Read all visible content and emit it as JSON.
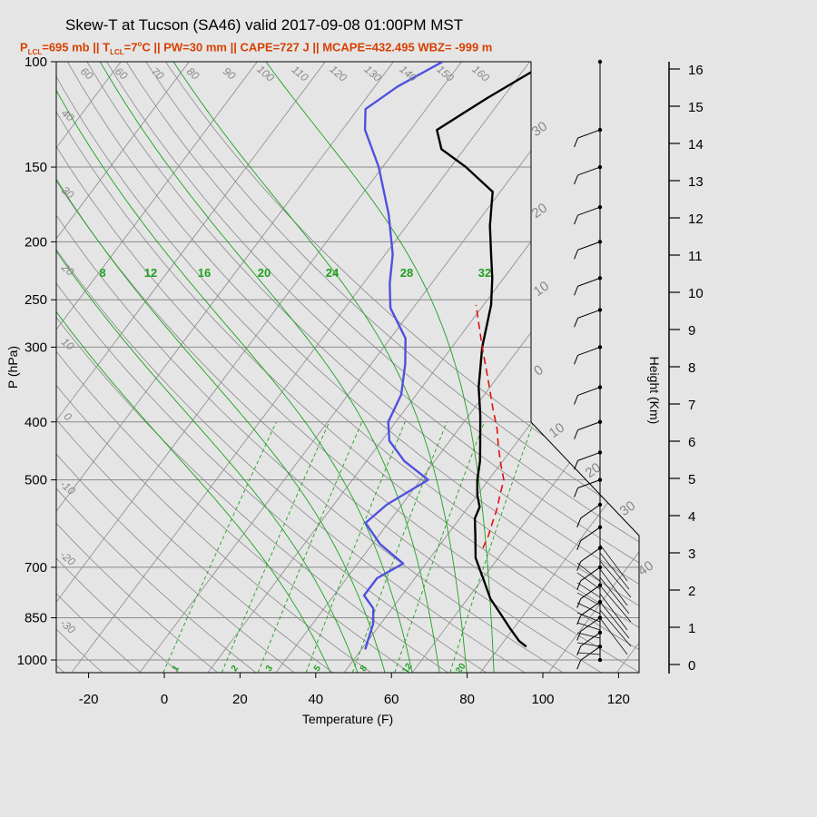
{
  "header": {
    "title": "Skew-T at Tucson (SA46) valid 2017-09-08 01:00PM MST",
    "sub_plcl_a": "P",
    "sub_plcl_b": "LCL",
    "sub_plcl_c": "=695 mb || T",
    "sub_tlcl_b": "LCL",
    "sub_tlcl_c": "=7",
    "sub_deg": "o",
    "sub_rest": "C || PW=30 mm || CAPE=727 J || MCAPE=432.495 WBZ= -999 m"
  },
  "chart_data": {
    "type": "line",
    "title": "Skew-T at Tucson (SA46) valid 2017-09-08 01:00PM MST",
    "xlabel": "Temperature (F)",
    "ylabel": "P (hPa)",
    "y2label": "Height (Km)",
    "xlim": [
      -28,
      125
    ],
    "ylim": [
      1050,
      100
    ],
    "y_scale": "log",
    "x_ticks": [
      "-20",
      "0",
      "20",
      "40",
      "60",
      "80",
      "100",
      "120"
    ],
    "y_ticks": [
      "100",
      "150",
      "200",
      "250",
      "300",
      "400",
      "500",
      "700",
      "850",
      "1000"
    ],
    "height_ticks": [
      "0",
      "1",
      "2",
      "3",
      "4",
      "5",
      "6",
      "7",
      "8",
      "9",
      "10",
      "11",
      "12",
      "13",
      "14",
      "15",
      "16"
    ],
    "mixing_ratio_top_labels": [
      "8",
      "12",
      "16",
      "20",
      "24",
      "28",
      "32"
    ],
    "mixing_ratio_bottom_labels": [
      "1",
      "2",
      "3",
      "5",
      "8",
      "12",
      "20"
    ],
    "dry_adiabat_labels": [
      "60",
      "60",
      "70",
      "80",
      "90",
      "100",
      "110",
      "120",
      "130",
      "140",
      "150",
      "160"
    ],
    "left_adiabat_labels": [
      "40",
      "30",
      "20",
      "10",
      "0",
      "-10",
      "-20",
      "-30"
    ],
    "isotherm_labels": [
      "30",
      "20",
      "10",
      "0",
      "10",
      "20",
      "30",
      "40"
    ],
    "series": [
      {
        "name": "Temperature",
        "color": "#000000",
        "points": [
          [
            93,
            950
          ],
          [
            90,
            930
          ],
          [
            85,
            885
          ],
          [
            80,
            840
          ],
          [
            74,
            790
          ],
          [
            68,
            730
          ],
          [
            62,
            675
          ],
          [
            58,
            625
          ],
          [
            54,
            580
          ],
          [
            53,
            555
          ],
          [
            50,
            530
          ],
          [
            47,
            500
          ],
          [
            44,
            465
          ],
          [
            40,
            430
          ],
          [
            35,
            390
          ],
          [
            29,
            350
          ],
          [
            22,
            300
          ],
          [
            16,
            255
          ],
          [
            11,
            230
          ],
          [
            6,
            210
          ],
          [
            0,
            188
          ],
          [
            -6,
            165
          ],
          [
            -18,
            150
          ],
          [
            -28,
            140
          ],
          [
            -33,
            130
          ],
          [
            -26,
            115
          ],
          [
            -17,
            100
          ]
        ]
      },
      {
        "name": "Dewpoint",
        "color": "#5050e0",
        "points": [
          [
            51,
            960
          ],
          [
            50,
            930
          ],
          [
            48,
            870
          ],
          [
            45,
            820
          ],
          [
            40,
            780
          ],
          [
            40,
            730
          ],
          [
            44,
            690
          ],
          [
            34,
            640
          ],
          [
            26,
            590
          ],
          [
            28,
            550
          ],
          [
            34,
            500
          ],
          [
            24,
            465
          ],
          [
            16,
            430
          ],
          [
            12,
            400
          ],
          [
            10,
            360
          ],
          [
            5,
            320
          ],
          [
            0,
            290
          ],
          [
            -10,
            258
          ],
          [
            -15,
            235
          ],
          [
            -20,
            210
          ],
          [
            -29,
            180
          ],
          [
            -41,
            150
          ],
          [
            -52,
            130
          ],
          [
            -56,
            120
          ],
          [
            -52,
            110
          ],
          [
            -45,
            100
          ]
        ]
      },
      {
        "name": "Parcel",
        "color": "#e01010",
        "points": [
          [
            62,
            650
          ],
          [
            61,
            620
          ],
          [
            60,
            600
          ],
          [
            58,
            560
          ],
          [
            56,
            530
          ],
          [
            54,
            500
          ],
          [
            50,
            470
          ],
          [
            46,
            440
          ],
          [
            42,
            410
          ],
          [
            37,
            380
          ],
          [
            30,
            340
          ],
          [
            22,
            300
          ],
          [
            12,
            255
          ]
        ]
      }
    ],
    "wind_barbs_hpa": [
      100,
      130,
      150,
      175,
      200,
      230,
      260,
      300,
      350,
      400,
      450,
      500,
      550,
      600,
      650,
      700,
      750,
      800,
      850,
      900,
      950,
      1000
    ]
  },
  "colors": {
    "background": "#e5e5e5",
    "subtitle": "#d64000",
    "mixing": "#1ea01e",
    "grid": "#888888"
  }
}
